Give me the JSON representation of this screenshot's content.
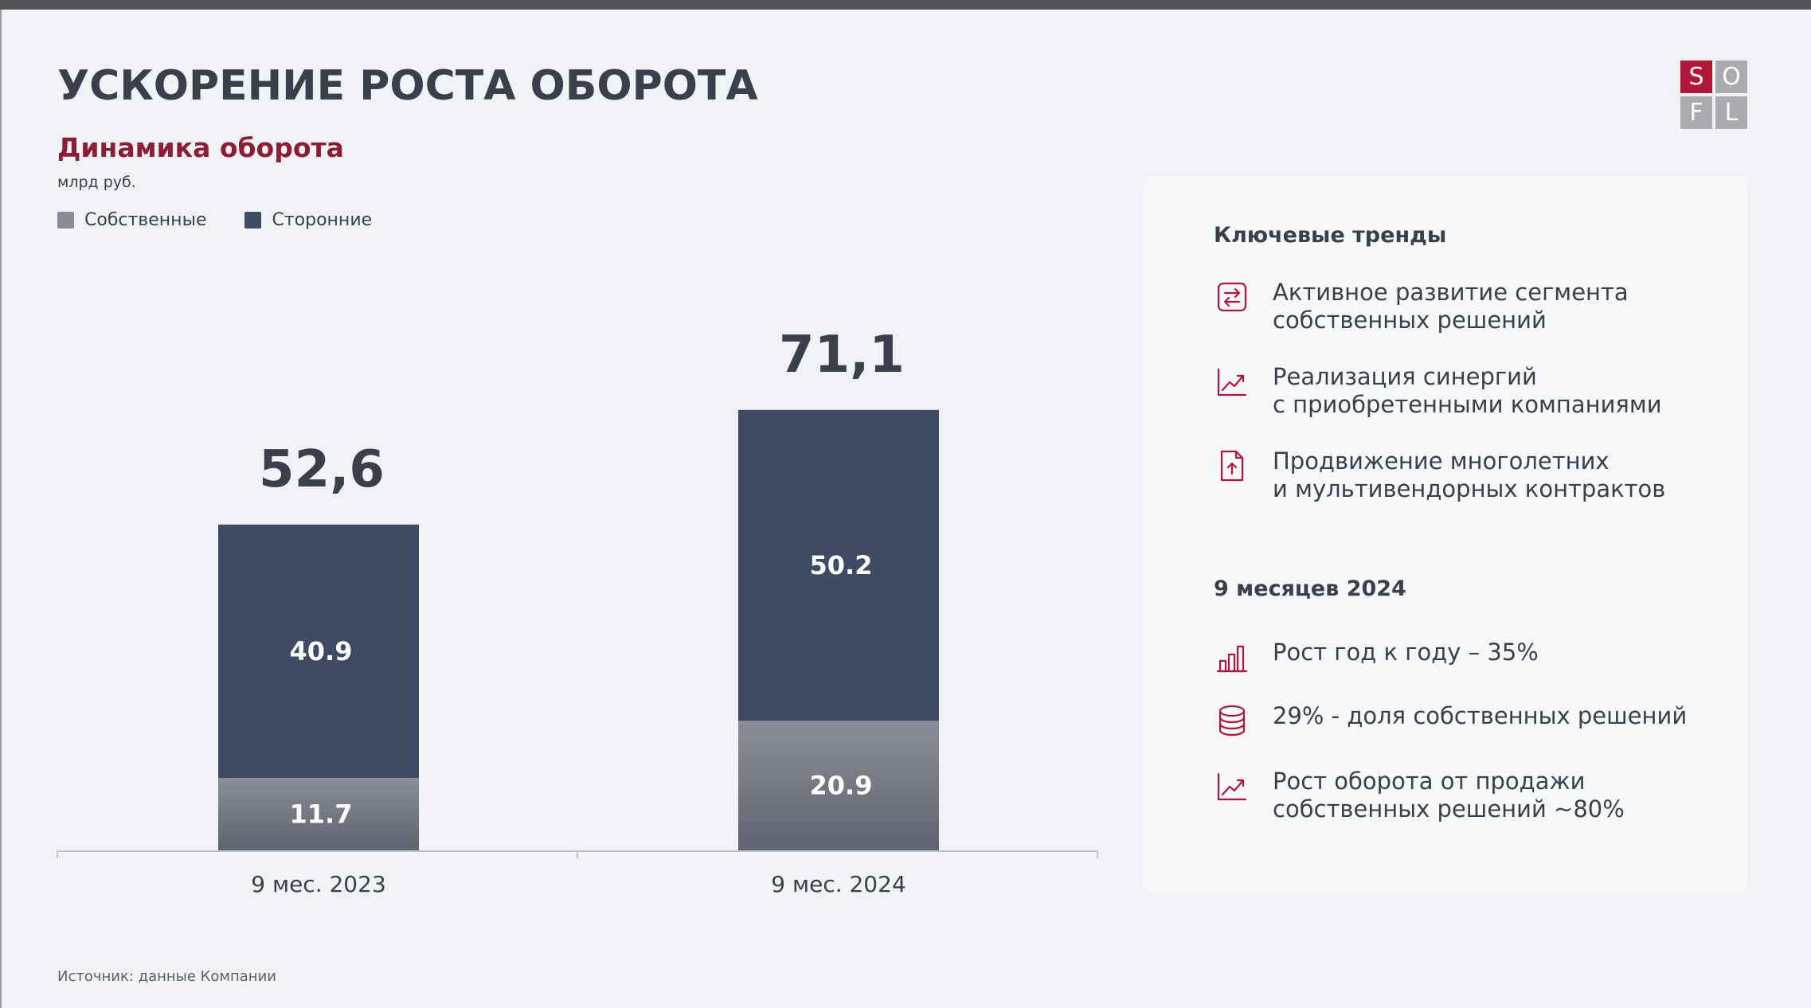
{
  "page": {
    "title": "УСКОРЕНИЕ РОСТА ОБОРОТА",
    "subtitle": "Динамика оборота",
    "unit": "млрд руб.",
    "source": "Источник: данные Компании"
  },
  "logo": {
    "letters": [
      "S",
      "O",
      "F",
      "L"
    ],
    "red": "#b0173a",
    "gray": "#a9abb1"
  },
  "colors": {
    "own": "#898c96",
    "third_party": "#3d4b63",
    "accent": "#8c1d34"
  },
  "chart_data": {
    "type": "bar",
    "stacked": true,
    "title": "Динамика оборота",
    "ylabel": "млрд руб.",
    "categories": [
      "9 мес. 2023",
      "9 мес. 2024"
    ],
    "series": [
      {
        "name": "Собственные",
        "values": [
          11.7,
          20.9
        ],
        "labels": [
          "11.7",
          "20.9"
        ]
      },
      {
        "name": "Сторонние",
        "values": [
          40.9,
          50.2
        ],
        "labels": [
          "40.9",
          "50.2"
        ]
      }
    ],
    "totals": [
      52.6,
      71.1
    ],
    "total_labels": [
      "52,6",
      "71,1"
    ],
    "legend": "top-left",
    "grid": false
  },
  "panel": {
    "trends_heading": "Ключевые тренды",
    "trends": [
      {
        "icon": "exchange-arrows-icon",
        "text": "Активное развитие сегмента\nсобственных решений"
      },
      {
        "icon": "trend-up-icon",
        "text": "Реализация синергий\nс приобретенными компаниями"
      },
      {
        "icon": "document-upload-icon",
        "text": "Продвижение многолетних\nи мультивендорных контрактов"
      }
    ],
    "period_heading": "9 месяцев 2024",
    "period_items": [
      {
        "icon": "bar-chart-icon",
        "text": "Рост год к году – 35%"
      },
      {
        "icon": "database-icon",
        "text": "29% - доля собственных решений"
      },
      {
        "icon": "trend-up-icon",
        "text": "Рост оборота от продажи\nсобственных решений ~80%"
      }
    ]
  }
}
